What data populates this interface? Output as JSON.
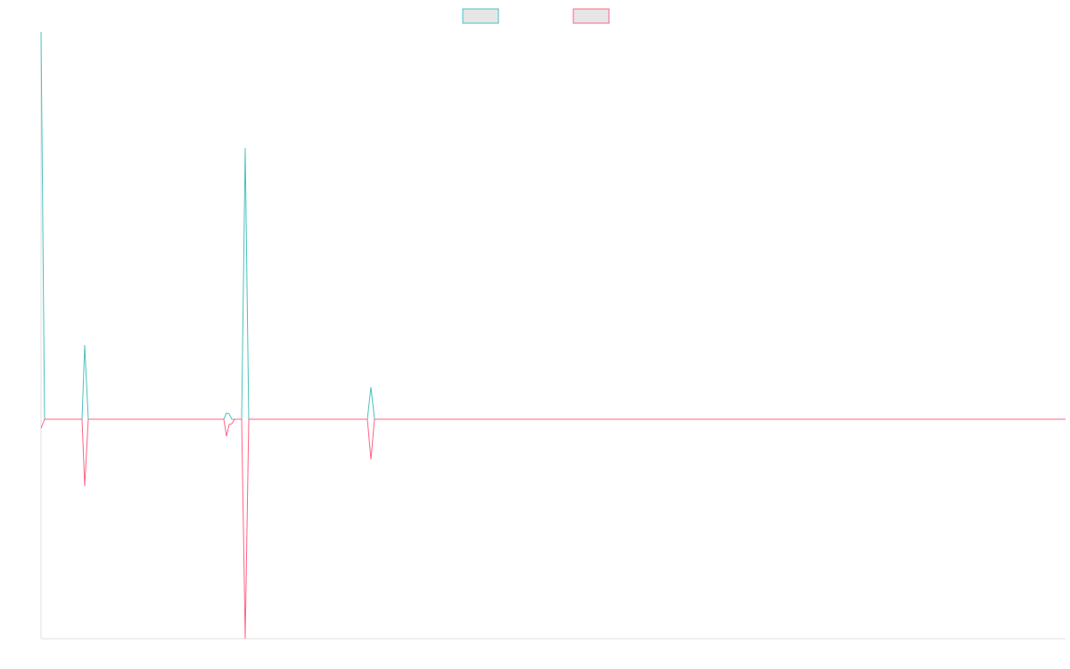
{
  "chart_data": {
    "type": "line",
    "x": [
      0,
      4,
      46,
      49,
      53,
      205,
      208,
      211,
      214,
      217,
      225,
      229,
      233,
      366,
      370,
      374,
      1149
    ],
    "series": [
      {
        "color": "#4bc0c0",
        "values": [
          434,
          0,
          0,
          83,
          0,
          0,
          7,
          6,
          0,
          0,
          0,
          304,
          0,
          0,
          36,
          0,
          0
        ]
      },
      {
        "color": "#ff6384",
        "values": [
          -10,
          0,
          0,
          -75,
          0,
          0,
          -19,
          -6,
          -5,
          0,
          0,
          -246,
          0,
          0,
          -45,
          0,
          0
        ]
      }
    ],
    "xlim": [
      0,
      1149
    ],
    "ylim": [
      -246,
      434
    ],
    "legend": "top"
  }
}
